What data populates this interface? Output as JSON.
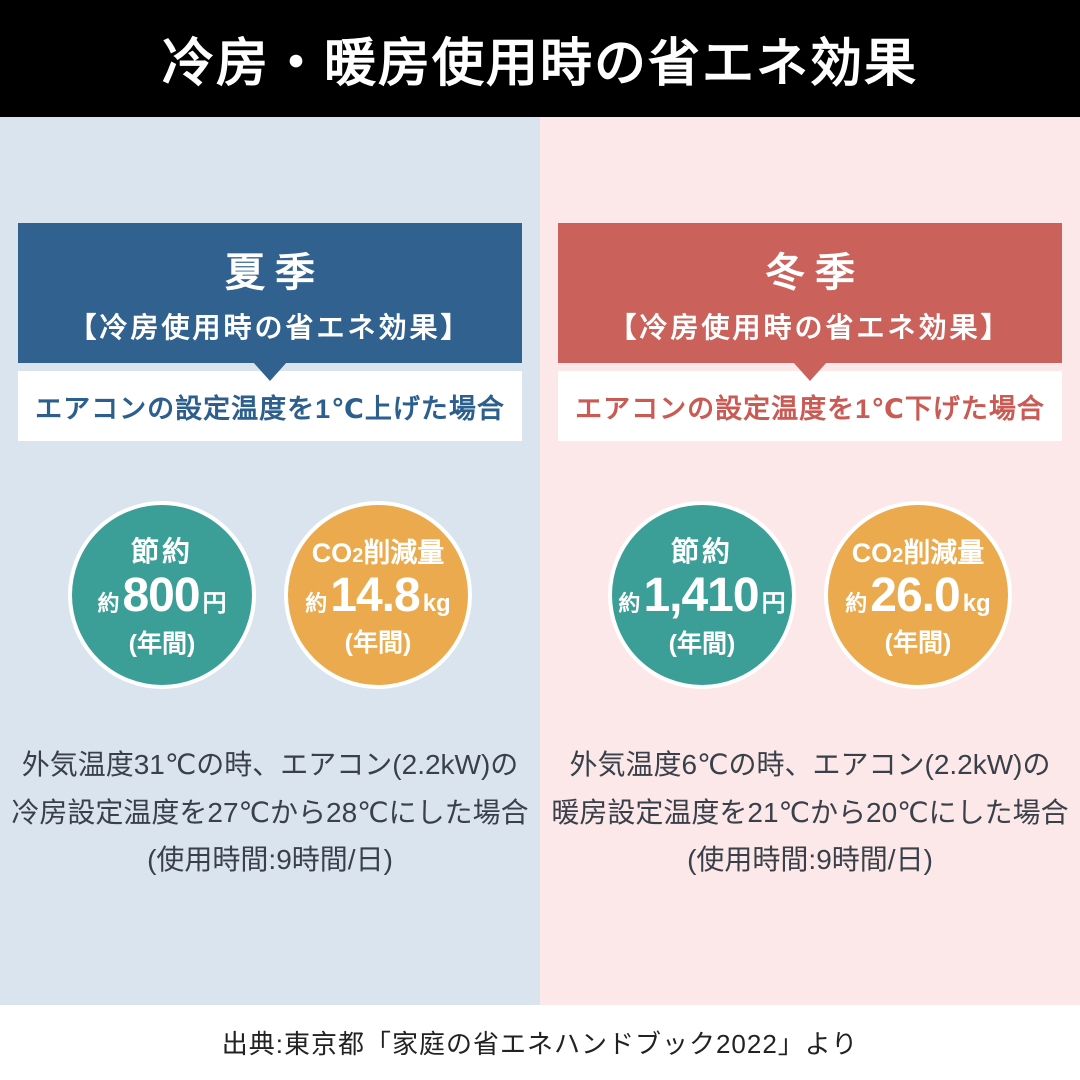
{
  "title": "冷房・暖房使用時の省エネ効果",
  "footer": "出典:東京都「家庭の省エネハンドブック2022」より",
  "colors": {
    "title_bg": "#000000",
    "title_text": "#ffffff",
    "summer_bg": "#d9e4ef",
    "winter_bg": "#fce8e8",
    "summer_header": "#31618e",
    "winter_header": "#ca625b",
    "summer_accent": "#2c5f8e",
    "winter_accent": "#ca5a54",
    "teal": "#3b9e97",
    "yellow": "#eaaa4d",
    "note_text": "#39404a",
    "footer_text": "#222222"
  },
  "panels": [
    {
      "season": "夏季",
      "subtitle": "【冷房使用時の省エネ効果】",
      "condition": "エアコンの設定温度を1℃上げた場合",
      "savings": {
        "label": "節約",
        "prefix": "約",
        "value": "800",
        "unit": "円",
        "period": "(年間)"
      },
      "co2": {
        "label_co": "CO",
        "label_sub": "2",
        "label_rest": "削減量",
        "prefix": "約",
        "value": "14.8",
        "unit": "kg",
        "period": "(年間)"
      },
      "note_line1": "外気温度31℃の時、エアコン(2.2kW)の",
      "note_line2": "冷房設定温度を27℃から28℃にした場合",
      "note_line3": "(使用時間:9時間/日)"
    },
    {
      "season": "冬季",
      "subtitle": "【冷房使用時の省エネ効果】",
      "condition": "エアコンの設定温度を1℃下げた場合",
      "savings": {
        "label": "節約",
        "prefix": "約",
        "value": "1,410",
        "unit": "円",
        "period": "(年間)"
      },
      "co2": {
        "label_co": "CO",
        "label_sub": "2",
        "label_rest": "削減量",
        "prefix": "約",
        "value": "26.0",
        "unit": "kg",
        "period": "(年間)"
      },
      "note_line1": "外気温度6℃の時、エアコン(2.2kW)の",
      "note_line2": "暖房設定温度を21℃から20℃にした場合",
      "note_line3": "(使用時間:9時間/日)"
    }
  ]
}
